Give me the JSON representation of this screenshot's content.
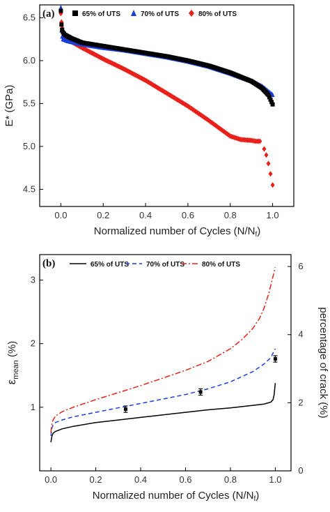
{
  "chart_data": [
    {
      "type": "scatter",
      "panel_label": "(a)",
      "xlabel": "Normalized number of Cycles (N/N",
      "xlabel_sub": "f",
      "xlabel_end": ")",
      "ylabel": "E* (GPa)",
      "xlim": [
        -0.1,
        1.1
      ],
      "ylim": [
        4.3,
        6.65
      ],
      "xticks": [
        0.0,
        0.2,
        0.4,
        0.6,
        0.8,
        1.0
      ],
      "xtick_labels": [
        "0.0",
        "0.2",
        "0.4",
        "0.6",
        "0.8",
        "1.0"
      ],
      "yticks": [
        4.5,
        5.0,
        5.5,
        6.0,
        6.5
      ],
      "ytick_labels": [
        "4.5",
        "5.0",
        "5.5",
        "6.0",
        "6.5"
      ],
      "legend_position": "top",
      "series": [
        {
          "name": "65% of UTS",
          "color": "#000000",
          "marker": "square",
          "x": [
            0.0,
            0.003,
            0.006,
            0.01,
            0.02,
            0.05,
            0.1,
            0.2,
            0.3,
            0.4,
            0.5,
            0.6,
            0.7,
            0.8,
            0.9,
            0.95,
            0.98,
            1.0
          ],
          "y": [
            6.58,
            6.42,
            6.36,
            6.33,
            6.3,
            6.26,
            6.21,
            6.17,
            6.13,
            6.09,
            6.05,
            6.0,
            5.94,
            5.86,
            5.76,
            5.68,
            5.6,
            5.49
          ]
        },
        {
          "name": "70% of UTS",
          "color": "#1a3fd6",
          "marker": "triangle",
          "x": [
            0.0,
            0.003,
            0.006,
            0.01,
            0.03,
            0.1,
            0.2,
            0.3,
            0.4,
            0.5,
            0.6,
            0.7,
            0.8,
            0.9,
            0.95,
            1.0
          ],
          "y": [
            6.62,
            6.35,
            6.28,
            6.25,
            6.23,
            6.19,
            6.15,
            6.12,
            6.08,
            6.04,
            5.99,
            5.93,
            5.85,
            5.76,
            5.7,
            5.6
          ]
        },
        {
          "name": "80% of UTS",
          "color": "#e8201a",
          "marker": "diamond",
          "x": [
            0.0,
            0.003,
            0.006,
            0.01,
            0.02,
            0.05,
            0.1,
            0.2,
            0.3,
            0.4,
            0.5,
            0.6,
            0.7,
            0.8,
            0.85,
            0.9,
            0.92,
            0.94,
            0.96,
            0.97,
            0.98,
            0.99,
            1.0
          ],
          "y": [
            6.55,
            6.45,
            6.38,
            6.32,
            6.27,
            6.22,
            6.15,
            6.02,
            5.9,
            5.77,
            5.62,
            5.47,
            5.3,
            5.12,
            5.08,
            5.07,
            5.06,
            5.06,
            4.97,
            4.9,
            4.8,
            4.68,
            4.55
          ]
        }
      ]
    },
    {
      "type": "line",
      "panel_label": "(b)",
      "xlabel": "Normalized number of Cycles (N/N",
      "xlabel_sub": "f",
      "xlabel_end": ")",
      "ylabel": "ε",
      "ylabel_sub": "mean",
      "ylabel_unit": " (%)",
      "y2label": "percentage of crack  (%)",
      "xlim": [
        -0.05,
        1.07
      ],
      "ylim": [
        0,
        3.4
      ],
      "y2lim": [
        0,
        6.35
      ],
      "xticks": [
        0.0,
        0.2,
        0.4,
        0.6,
        0.8,
        1.0
      ],
      "xtick_labels": [
        "0.0",
        "0.2",
        "0.4",
        "0.6",
        "0.8",
        "1.0"
      ],
      "yticks": [
        1,
        2,
        3
      ],
      "ytick_labels": [
        "1",
        "2",
        "3"
      ],
      "y2ticks": [
        0,
        2,
        4,
        6
      ],
      "y2tick_labels": [
        "0",
        "2",
        "4",
        "6"
      ],
      "legend_position": "top",
      "series": [
        {
          "name": "65% of UTS",
          "color": "#000000",
          "dash": "solid",
          "x": [
            0.0,
            0.005,
            0.01,
            0.02,
            0.05,
            0.1,
            0.2,
            0.3,
            0.4,
            0.5,
            0.6,
            0.7,
            0.8,
            0.9,
            0.95,
            0.98,
            0.99,
            0.995,
            1.0
          ],
          "y": [
            0.45,
            0.55,
            0.59,
            0.62,
            0.66,
            0.7,
            0.76,
            0.8,
            0.84,
            0.88,
            0.92,
            0.96,
            0.99,
            1.03,
            1.05,
            1.08,
            1.12,
            1.2,
            1.38
          ]
        },
        {
          "name": "70% of UTS",
          "color": "#1a3fd6",
          "dash": "dashed",
          "x": [
            0.0,
            0.005,
            0.01,
            0.02,
            0.05,
            0.1,
            0.2,
            0.3,
            0.4,
            0.5,
            0.6,
            0.7,
            0.8,
            0.85,
            0.9,
            0.95,
            0.98,
            1.0
          ],
          "y": [
            0.55,
            0.68,
            0.72,
            0.76,
            0.8,
            0.85,
            0.92,
            0.99,
            1.06,
            1.13,
            1.2,
            1.29,
            1.4,
            1.48,
            1.56,
            1.68,
            1.78,
            1.92
          ]
        },
        {
          "name": "80% of UTS",
          "color": "#e8201a",
          "dash": "dashdot",
          "x": [
            0.0,
            0.005,
            0.01,
            0.02,
            0.05,
            0.1,
            0.2,
            0.3,
            0.4,
            0.5,
            0.6,
            0.7,
            0.8,
            0.85,
            0.9,
            0.93,
            0.95,
            0.97,
            0.98,
            0.99,
            1.0
          ],
          "y": [
            0.6,
            0.75,
            0.8,
            0.86,
            0.93,
            1.0,
            1.12,
            1.23,
            1.34,
            1.46,
            1.58,
            1.72,
            1.92,
            2.06,
            2.24,
            2.4,
            2.56,
            2.78,
            2.92,
            3.06,
            3.2
          ]
        }
      ],
      "error_bars": [
        {
          "x": 0.333,
          "y": 0.97,
          "err": 0.05
        },
        {
          "x": 0.667,
          "y": 1.24,
          "err": 0.05
        },
        {
          "x": 1.0,
          "y": 1.76,
          "err": 0.05
        }
      ]
    }
  ]
}
